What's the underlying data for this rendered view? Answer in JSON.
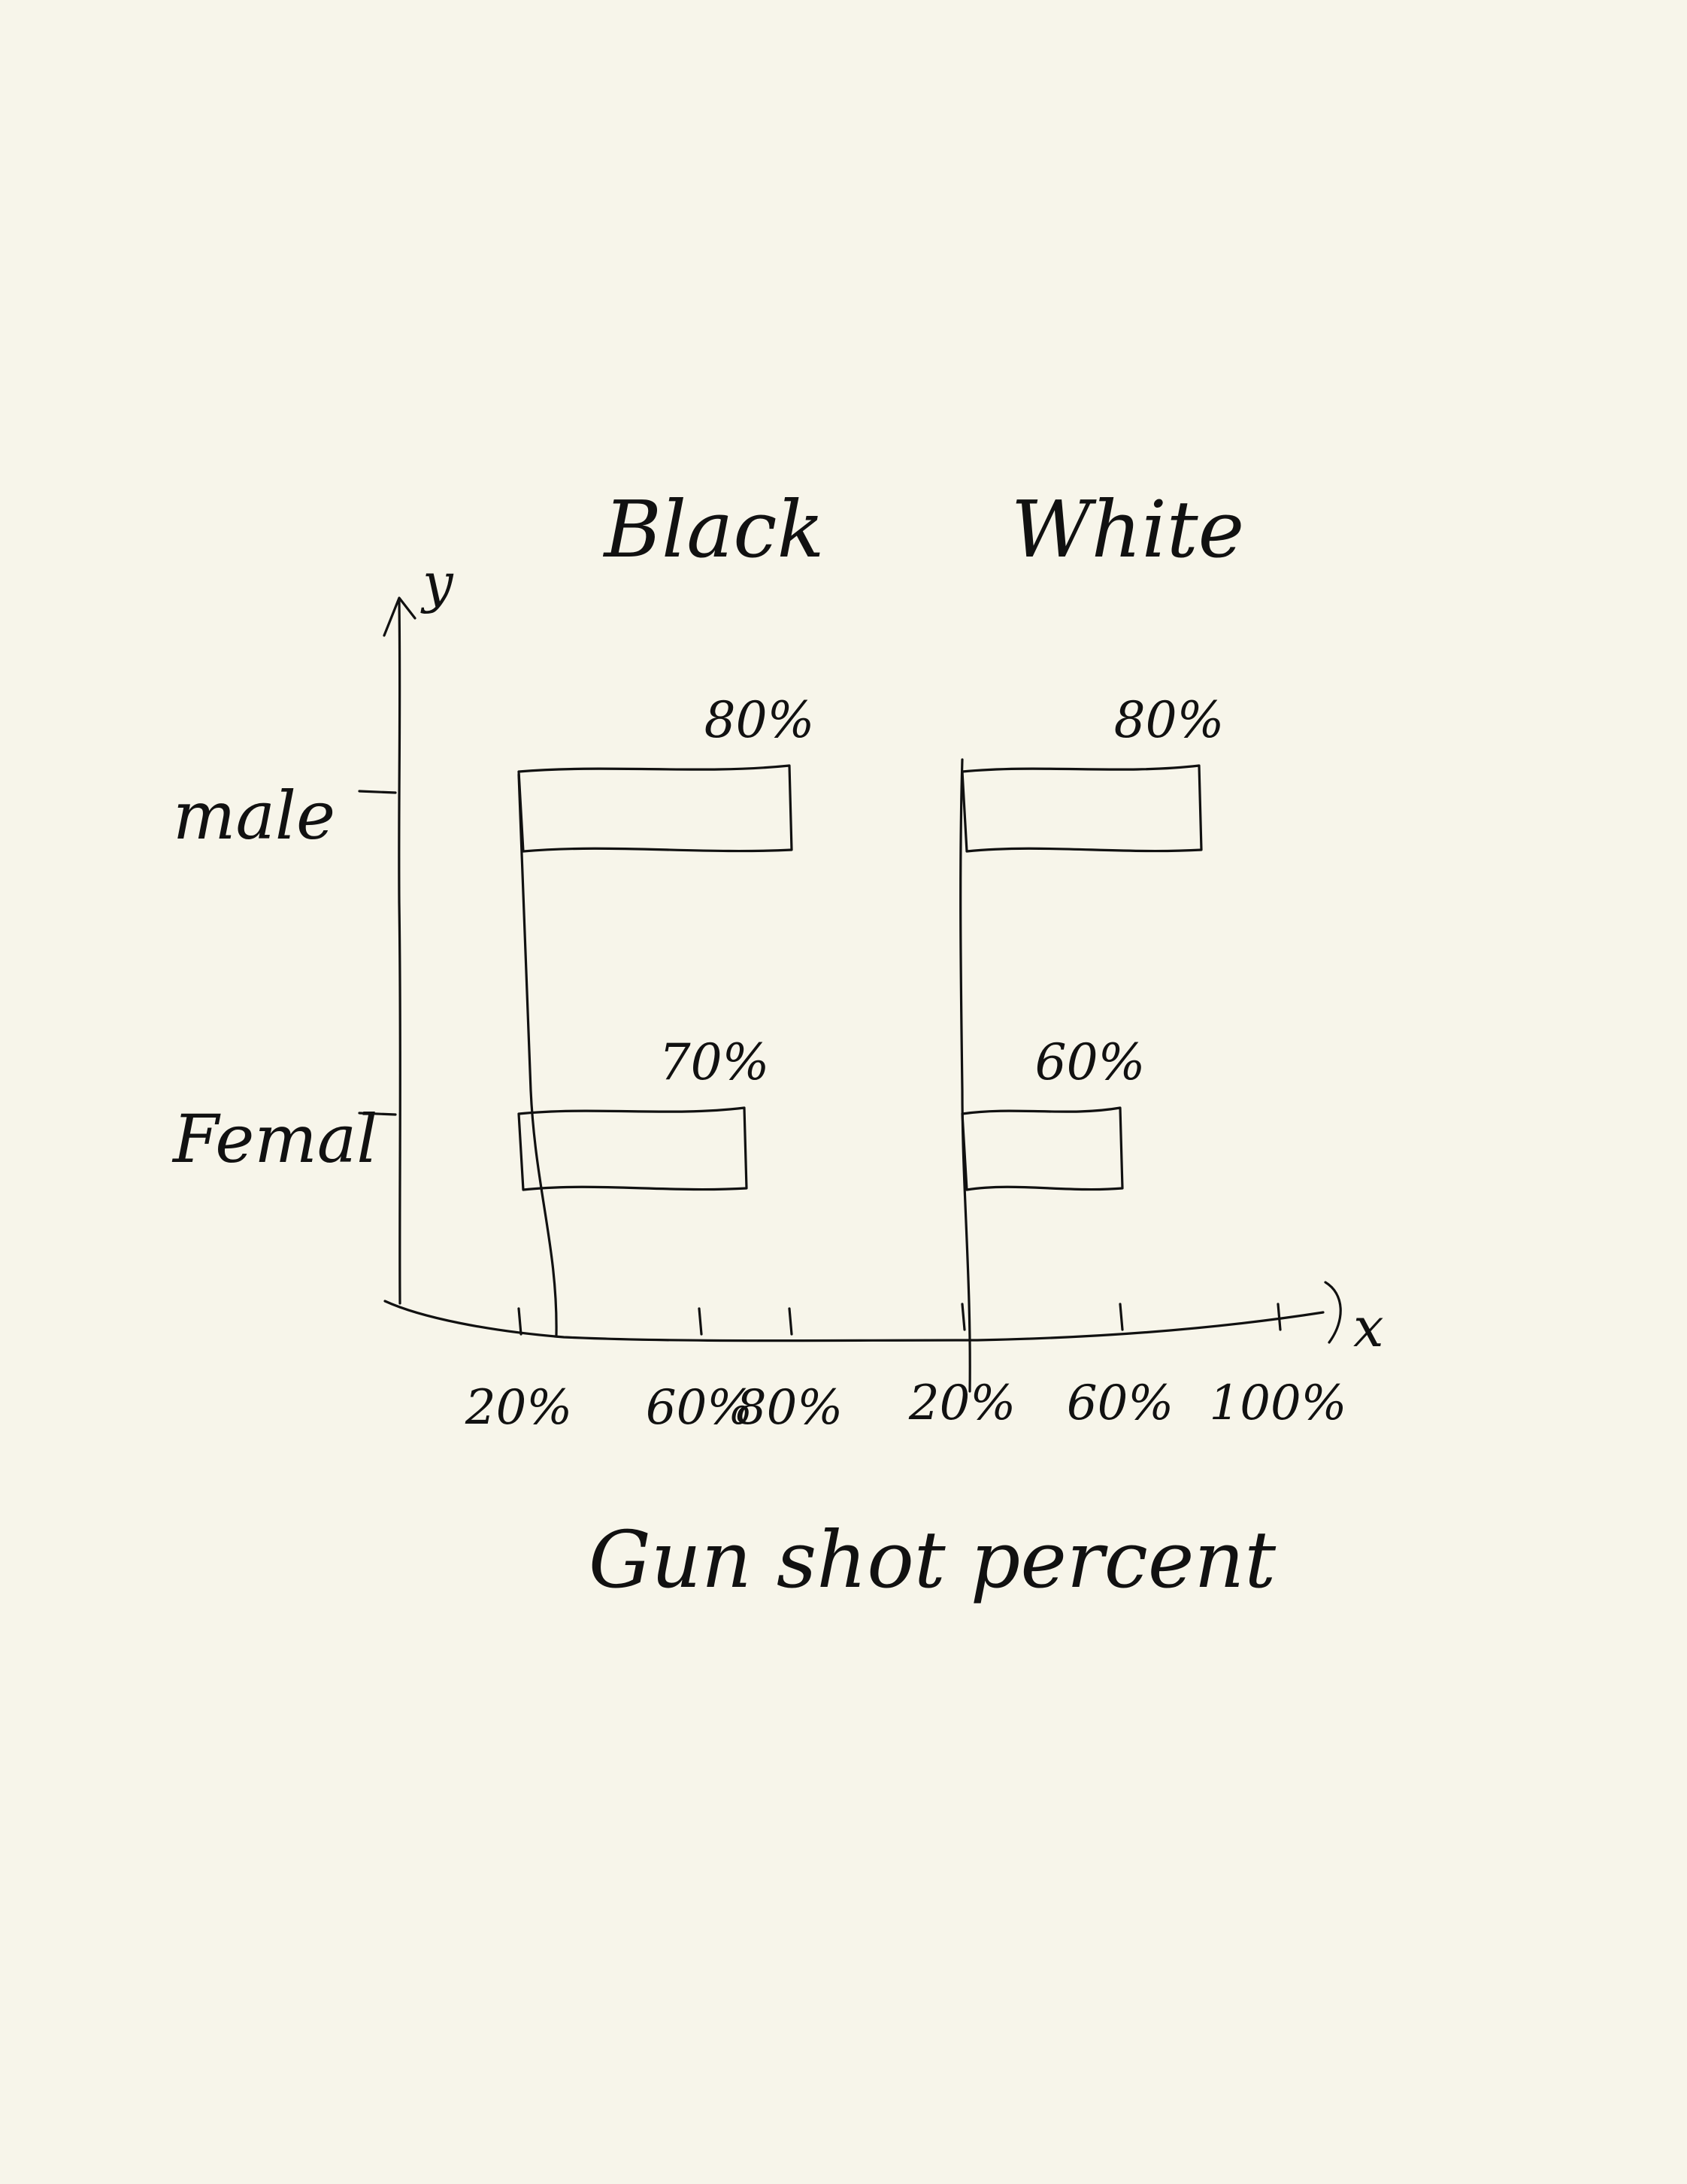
{
  "chart_data": {
    "type": "bar",
    "orientation": "horizontal",
    "ylabel": "y",
    "xlabel": "Gun shot percent",
    "x_axis_label": "x",
    "categories": [
      "male",
      "Femal"
    ],
    "panels": [
      {
        "name": "Black",
        "xlim": [
          20,
          100
        ],
        "ticks": [
          20,
          60,
          80
        ],
        "tick_labels": [
          "20%",
          "60%",
          "80%"
        ],
        "values": [
          80,
          70
        ],
        "data_labels": [
          "80%",
          "70%"
        ]
      },
      {
        "name": "White",
        "xlim": [
          20,
          100
        ],
        "ticks": [
          20,
          60,
          100
        ],
        "tick_labels": [
          "20%",
          "60%",
          "100%"
        ],
        "values": [
          80,
          60
        ],
        "data_labels": [
          "80%",
          "60%"
        ]
      }
    ],
    "legend": "none",
    "grid": false
  }
}
